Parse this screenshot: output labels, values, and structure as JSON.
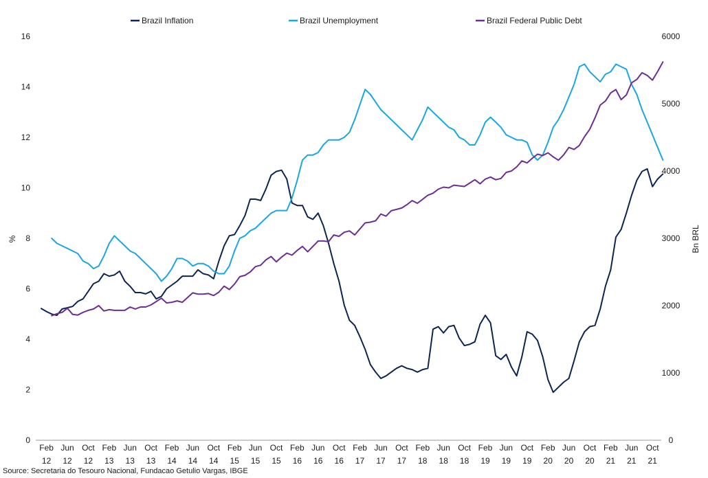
{
  "chart_data": {
    "type": "line",
    "x_start": "Jan 12",
    "x_labels": [
      {
        "i": 1,
        "m": "Feb",
        "y": "12"
      },
      {
        "i": 5,
        "m": "Jun",
        "y": "12"
      },
      {
        "i": 9,
        "m": "Oct",
        "y": "12"
      },
      {
        "i": 13,
        "m": "Feb",
        "y": "13"
      },
      {
        "i": 17,
        "m": "Jun",
        "y": "13"
      },
      {
        "i": 21,
        "m": "Oct",
        "y": "13"
      },
      {
        "i": 25,
        "m": "Feb",
        "y": "14"
      },
      {
        "i": 29,
        "m": "Jun",
        "y": "14"
      },
      {
        "i": 33,
        "m": "Oct",
        "y": "14"
      },
      {
        "i": 37,
        "m": "Feb",
        "y": "15"
      },
      {
        "i": 41,
        "m": "Jun",
        "y": "15"
      },
      {
        "i": 45,
        "m": "Oct",
        "y": "15"
      },
      {
        "i": 49,
        "m": "Feb",
        "y": "16"
      },
      {
        "i": 53,
        "m": "Jun",
        "y": "16"
      },
      {
        "i": 57,
        "m": "Oct",
        "y": "16"
      },
      {
        "i": 61,
        "m": "Feb",
        "y": "17"
      },
      {
        "i": 65,
        "m": "Jun",
        "y": "17"
      },
      {
        "i": 69,
        "m": "Oct",
        "y": "17"
      },
      {
        "i": 73,
        "m": "Feb",
        "y": "18"
      },
      {
        "i": 77,
        "m": "Jun",
        "y": "18"
      },
      {
        "i": 81,
        "m": "Oct",
        "y": "18"
      },
      {
        "i": 85,
        "m": "Feb",
        "y": "19"
      },
      {
        "i": 89,
        "m": "Jun",
        "y": "19"
      },
      {
        "i": 93,
        "m": "Oct",
        "y": "19"
      },
      {
        "i": 97,
        "m": "Feb",
        "y": "20"
      },
      {
        "i": 101,
        "m": "Jun",
        "y": "20"
      },
      {
        "i": 105,
        "m": "Oct",
        "y": "20"
      },
      {
        "i": 109,
        "m": "Feb",
        "y": "21"
      },
      {
        "i": 113,
        "m": "Jun",
        "y": "21"
      },
      {
        "i": 117,
        "m": "Oct",
        "y": "21"
      }
    ],
    "y_left": {
      "label": "%",
      "min": 0,
      "max": 16,
      "ticks": [
        0,
        2,
        4,
        6,
        8,
        10,
        12,
        14,
        16
      ]
    },
    "y_right": {
      "label": "Bn BRL",
      "min": 0,
      "max": 6000,
      "ticks": [
        0,
        1000,
        2000,
        3000,
        4000,
        5000,
        6000
      ]
    },
    "grid": false,
    "legend_position": "top",
    "series": [
      {
        "name": "Brazil Inflation",
        "color": "#0d2451",
        "axis": "left",
        "start_index": 0,
        "values": [
          5.22,
          5.1,
          5.0,
          4.95,
          5.2,
          5.25,
          5.3,
          5.5,
          5.6,
          5.9,
          6.2,
          6.3,
          6.6,
          6.5,
          6.55,
          6.7,
          6.3,
          6.1,
          5.85,
          5.85,
          5.8,
          5.9,
          5.6,
          5.7,
          6.0,
          6.15,
          6.3,
          6.5,
          6.5,
          6.5,
          6.75,
          6.6,
          6.55,
          6.4,
          7.1,
          7.7,
          8.1,
          8.15,
          8.5,
          8.9,
          9.55,
          9.55,
          9.5,
          9.95,
          10.5,
          10.65,
          10.7,
          10.35,
          9.4,
          9.3,
          9.3,
          8.85,
          8.75,
          9.0,
          8.5,
          7.8,
          7.0,
          6.3,
          5.35,
          4.75,
          4.55,
          4.1,
          3.6,
          3.0,
          2.7,
          2.45,
          2.55,
          2.7,
          2.85,
          2.95,
          2.85,
          2.8,
          2.7,
          2.8,
          2.85,
          4.4,
          4.5,
          4.25,
          4.5,
          4.55,
          4.05,
          3.75,
          3.8,
          3.9,
          4.6,
          4.95,
          4.65,
          3.35,
          3.2,
          3.4,
          2.9,
          2.55,
          3.3,
          4.3,
          4.2,
          3.95,
          3.3,
          2.4,
          1.9,
          2.1,
          2.3,
          2.45,
          3.15,
          3.9,
          4.3,
          4.5,
          4.55,
          5.2,
          6.1,
          6.75,
          8.05,
          8.35,
          9.0,
          9.7,
          10.3,
          10.65,
          10.75,
          10.05,
          10.35,
          10.55
        ]
      },
      {
        "name": "Brazil Unemployment",
        "color": "#1aa6de",
        "axis": "left",
        "start_index": 2,
        "values": [
          8.0,
          7.8,
          7.7,
          7.6,
          7.5,
          7.4,
          7.1,
          7.0,
          6.8,
          6.9,
          7.3,
          7.8,
          8.1,
          7.9,
          7.7,
          7.5,
          7.4,
          7.2,
          7.0,
          6.8,
          6.6,
          6.3,
          6.5,
          6.8,
          7.2,
          7.2,
          7.1,
          6.9,
          7.0,
          7.0,
          6.9,
          6.7,
          6.6,
          6.6,
          6.9,
          7.5,
          8.0,
          8.1,
          8.3,
          8.4,
          8.6,
          8.8,
          9.0,
          9.1,
          9.1,
          9.1,
          9.6,
          10.3,
          11.1,
          11.3,
          11.3,
          11.4,
          11.7,
          11.9,
          11.9,
          11.9,
          12.0,
          12.2,
          12.7,
          13.3,
          13.9,
          13.7,
          13.4,
          13.1,
          12.9,
          12.7,
          12.5,
          12.3,
          12.1,
          11.9,
          12.3,
          12.7,
          13.2,
          13.0,
          12.8,
          12.6,
          12.4,
          12.3,
          12.0,
          11.9,
          11.7,
          11.7,
          12.1,
          12.6,
          12.8,
          12.6,
          12.4,
          12.1,
          12.0,
          11.9,
          11.9,
          11.8,
          11.3,
          11.1,
          11.3,
          11.8,
          12.4,
          12.7,
          13.1,
          13.6,
          14.1,
          14.8,
          14.9,
          14.6,
          14.4,
          14.2,
          14.5,
          14.6,
          14.9,
          14.8,
          14.7,
          14.1,
          13.7,
          13.1,
          12.6,
          12.1,
          11.6,
          11.1
        ]
      },
      {
        "name": "Brazil Federal Public Debt",
        "color": "#6b2f91",
        "axis": "right",
        "start_index": 2,
        "values": [
          1850,
          1880,
          1900,
          1960,
          1870,
          1860,
          1900,
          1930,
          1950,
          2000,
          1920,
          1940,
          1930,
          1930,
          1930,
          1980,
          1950,
          1980,
          1980,
          2010,
          2060,
          2110,
          2040,
          2050,
          2070,
          2050,
          2120,
          2190,
          2170,
          2170,
          2180,
          2150,
          2200,
          2290,
          2240,
          2320,
          2430,
          2450,
          2500,
          2580,
          2600,
          2680,
          2730,
          2650,
          2720,
          2780,
          2750,
          2820,
          2880,
          2800,
          2880,
          2960,
          2960,
          2950,
          3050,
          3030,
          3090,
          3110,
          3050,
          3140,
          3230,
          3240,
          3260,
          3360,
          3330,
          3410,
          3430,
          3450,
          3500,
          3560,
          3520,
          3580,
          3640,
          3670,
          3730,
          3760,
          3750,
          3790,
          3780,
          3770,
          3820,
          3870,
          3810,
          3880,
          3910,
          3870,
          3890,
          3980,
          4000,
          4060,
          4150,
          4120,
          4190,
          4250,
          4230,
          4270,
          4210,
          4160,
          4240,
          4350,
          4320,
          4380,
          4510,
          4620,
          4790,
          4980,
          5040,
          5160,
          5210,
          5060,
          5130,
          5310,
          5360,
          5460,
          5420,
          5350,
          5480,
          5620
        ]
      }
    ],
    "source": "Source: Secretaria do Tesouro Nacional, Fundacao Getulio Vargas, IBGE"
  }
}
